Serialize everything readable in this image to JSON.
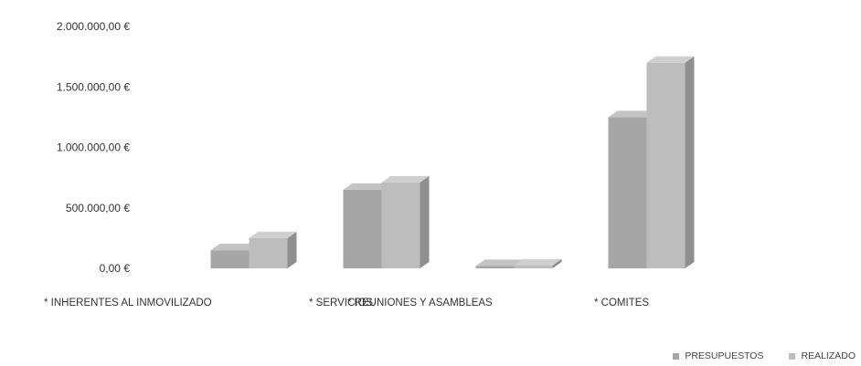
{
  "chart_data": {
    "type": "bar",
    "style": "3d-clustered-column",
    "categories": [
      "* INHERENTES AL INMOVILIZADO",
      "* SERVICIOS",
      "* REUNIONES Y ASAMBLEAS",
      "* COMITES"
    ],
    "series": [
      {
        "name": "PRESUPUESTOS",
        "values": [
          150000,
          650000,
          20000,
          1250000
        ]
      },
      {
        "name": "REALIZADO",
        "values": [
          250000,
          710000,
          25000,
          1700000
        ]
      }
    ],
    "y_ticks": [
      "0,00 €",
      "500.000,00 €",
      "1.000.000,00 €",
      "1.500.000,00 €",
      "2.000.000,00 €"
    ],
    "ylim": [
      0,
      2000000
    ],
    "grid": false,
    "legend_position": "bottom-right",
    "colors": {
      "presupuestos": "#a6a6a6",
      "realizado": "#bdbdbd",
      "text": "#333333"
    }
  }
}
